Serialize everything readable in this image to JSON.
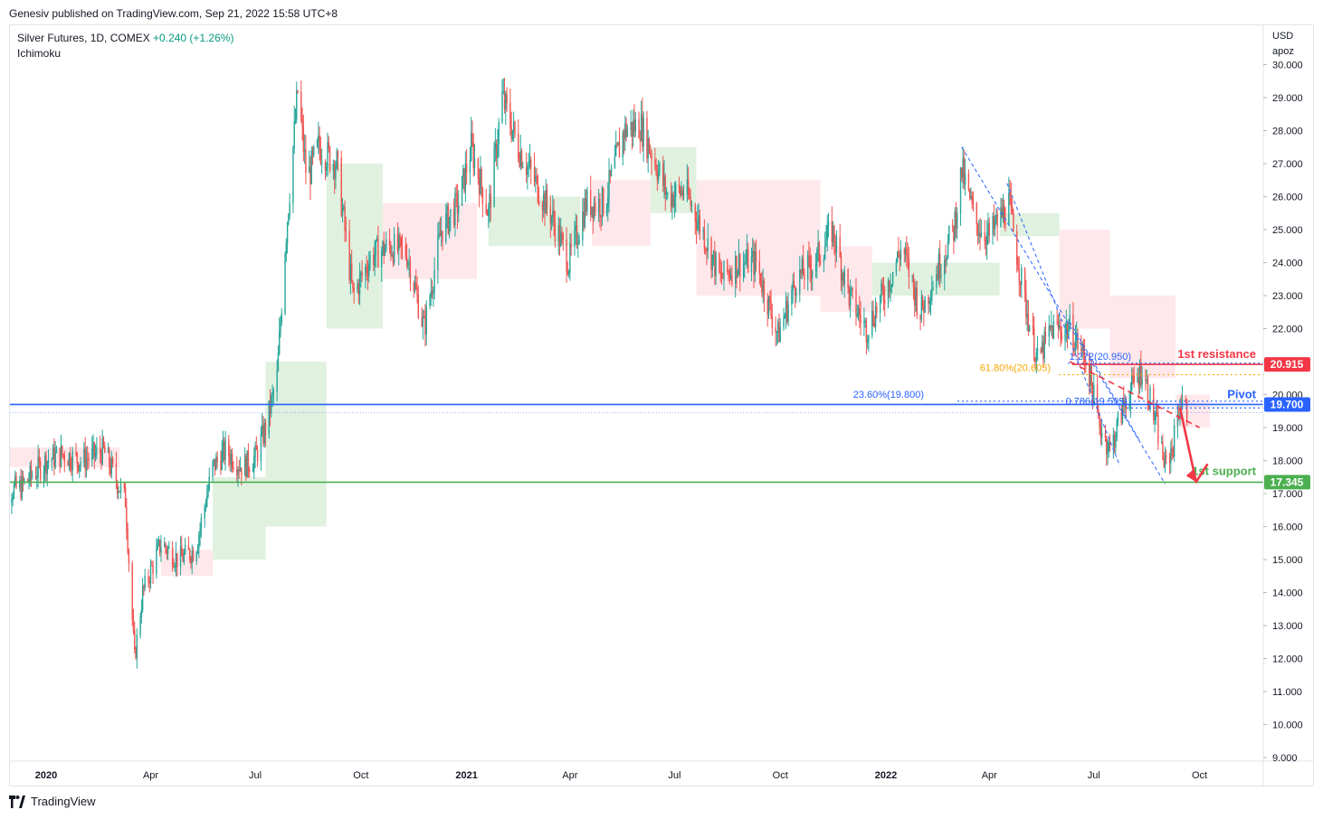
{
  "publisher": "Genesiv published on TradingView.com, Sep 21, 2022 15:58 UTC+8",
  "legend": {
    "symbol": "Silver Futures, 1D, COMEX",
    "change": "+0.240 (+1.26%)",
    "indicator": "Ichimoku"
  },
  "axis": {
    "currency": "USD",
    "sub": "apoz"
  },
  "footer": {
    "brand": "TradingView"
  },
  "colors": {
    "up": "#26a69a",
    "down": "#ef5350",
    "resistance": "#f23645",
    "pivot": "#2962ff",
    "support": "#4caf50",
    "fib": "#f7a600",
    "cloud_bull": "#a5d6a7",
    "cloud_bear": "#ffcdd2"
  },
  "chart_data": {
    "type": "candlestick",
    "y_ticks": [
      "9.000",
      "10.000",
      "11.000",
      "12.000",
      "13.000",
      "14.000",
      "15.000",
      "16.000",
      "17.000",
      "18.000",
      "19.000",
      "20.000",
      "21.000",
      "22.000",
      "23.000",
      "24.000",
      "25.000",
      "26.000",
      "27.000",
      "28.000",
      "29.000",
      "30.000"
    ],
    "ylim": [
      9,
      30.5
    ],
    "x_ticks": [
      {
        "label": "2020",
        "date": "2020-01-01",
        "bold": true
      },
      {
        "label": "Apr",
        "date": "2020-04-01"
      },
      {
        "label": "Jul",
        "date": "2020-07-01"
      },
      {
        "label": "Oct",
        "date": "2020-10-01"
      },
      {
        "label": "2021",
        "date": "2021-01-01",
        "bold": true
      },
      {
        "label": "Apr",
        "date": "2021-04-01"
      },
      {
        "label": "Jul",
        "date": "2021-07-01"
      },
      {
        "label": "Oct",
        "date": "2021-10-01"
      },
      {
        "label": "2022",
        "date": "2022-01-01",
        "bold": true
      },
      {
        "label": "Apr",
        "date": "2022-04-01"
      },
      {
        "label": "Jul",
        "date": "2022-07-01"
      },
      {
        "label": "Oct",
        "date": "2022-10-01"
      }
    ],
    "close_path": [
      [
        "2019-11-20",
        17.0
      ],
      [
        "2019-12-10",
        17.2
      ],
      [
        "2020-01-01",
        18.0
      ],
      [
        "2020-01-15",
        18.2
      ],
      [
        "2020-02-01",
        18.0
      ],
      [
        "2020-02-20",
        18.3
      ],
      [
        "2020-03-01",
        17.5
      ],
      [
        "2020-03-10",
        16.8
      ],
      [
        "2020-03-18",
        12.0
      ],
      [
        "2020-03-25",
        14.0
      ],
      [
        "2020-04-10",
        15.5
      ],
      [
        "2020-04-25",
        15.0
      ],
      [
        "2020-05-10",
        15.3
      ],
      [
        "2020-05-25",
        17.8
      ],
      [
        "2020-06-05",
        18.3
      ],
      [
        "2020-06-20",
        17.8
      ],
      [
        "2020-07-01",
        18.1
      ],
      [
        "2020-07-10",
        19.0
      ],
      [
        "2020-07-20",
        20.5
      ],
      [
        "2020-07-27",
        24.5
      ],
      [
        "2020-08-07",
        29.2
      ],
      [
        "2020-08-15",
        26.5
      ],
      [
        "2020-08-25",
        27.5
      ],
      [
        "2020-09-10",
        27.0
      ],
      [
        "2020-09-24",
        23.0
      ],
      [
        "2020-10-10",
        24.2
      ],
      [
        "2020-10-25",
        24.5
      ],
      [
        "2020-11-10",
        24.3
      ],
      [
        "2020-11-25",
        22.0
      ],
      [
        "2020-12-10",
        25.0
      ],
      [
        "2020-12-25",
        25.8
      ],
      [
        "2021-01-05",
        27.5
      ],
      [
        "2021-01-20",
        25.5
      ],
      [
        "2021-02-01",
        29.0
      ],
      [
        "2021-02-15",
        27.5
      ],
      [
        "2021-03-01",
        26.5
      ],
      [
        "2021-03-15",
        25.5
      ],
      [
        "2021-03-31",
        24.0
      ],
      [
        "2021-04-15",
        25.8
      ],
      [
        "2021-05-01",
        25.8
      ],
      [
        "2021-05-18",
        28.0
      ],
      [
        "2021-06-01",
        28.2
      ],
      [
        "2021-06-15",
        27.0
      ],
      [
        "2021-06-25",
        26.0
      ],
      [
        "2021-07-10",
        26.2
      ],
      [
        "2021-07-25",
        25.0
      ],
      [
        "2021-08-10",
        23.5
      ],
      [
        "2021-08-25",
        24.0
      ],
      [
        "2021-09-10",
        24.0
      ],
      [
        "2021-09-29",
        21.8
      ],
      [
        "2021-10-15",
        23.5
      ],
      [
        "2021-10-31",
        24.0
      ],
      [
        "2021-11-15",
        25.0
      ],
      [
        "2021-11-30",
        23.0
      ],
      [
        "2021-12-15",
        22.0
      ],
      [
        "2022-01-01",
        23.2
      ],
      [
        "2022-01-15",
        24.5
      ],
      [
        "2022-01-31",
        22.5
      ],
      [
        "2022-02-15",
        23.8
      ],
      [
        "2022-03-01",
        25.0
      ],
      [
        "2022-03-08",
        26.8
      ],
      [
        "2022-03-20",
        25.2
      ],
      [
        "2022-04-01",
        24.8
      ],
      [
        "2022-04-18",
        25.8
      ],
      [
        "2022-05-01",
        23.0
      ],
      [
        "2022-05-13",
        21.0
      ],
      [
        "2022-05-25",
        22.0
      ],
      [
        "2022-06-10",
        22.0
      ],
      [
        "2022-06-25",
        21.0
      ],
      [
        "2022-07-05",
        19.2
      ],
      [
        "2022-07-15",
        18.3
      ],
      [
        "2022-07-28",
        19.8
      ],
      [
        "2022-08-12",
        20.8
      ],
      [
        "2022-08-25",
        19.0
      ],
      [
        "2022-09-01",
        17.8
      ],
      [
        "2022-09-08",
        18.5
      ],
      [
        "2022-09-14",
        19.8
      ],
      [
        "2022-09-21",
        19.4
      ]
    ],
    "cloud": [
      {
        "from": "2019-11-10",
        "to": "2020-03-05",
        "lo": 17.8,
        "hi": 18.4,
        "bull": false
      },
      {
        "from": "2020-04-10",
        "to": "2020-05-25",
        "lo": 14.5,
        "hi": 15.3,
        "bull": false
      },
      {
        "from": "2020-05-25",
        "to": "2020-07-10",
        "lo": 15.0,
        "hi": 17.5,
        "bull": true
      },
      {
        "from": "2020-07-10",
        "to": "2020-09-01",
        "lo": 16.0,
        "hi": 21.0,
        "bull": true
      },
      {
        "from": "2020-09-01",
        "to": "2020-10-20",
        "lo": 22.0,
        "hi": 27.0,
        "bull": true
      },
      {
        "from": "2020-10-20",
        "to": "2021-01-10",
        "lo": 23.5,
        "hi": 25.8,
        "bull": false
      },
      {
        "from": "2021-01-20",
        "to": "2021-04-10",
        "lo": 24.5,
        "hi": 26.0,
        "bull": true
      },
      {
        "from": "2021-04-20",
        "to": "2021-06-10",
        "lo": 24.5,
        "hi": 26.5,
        "bull": false
      },
      {
        "from": "2021-06-10",
        "to": "2021-07-20",
        "lo": 25.5,
        "hi": 27.5,
        "bull": true
      },
      {
        "from": "2021-07-20",
        "to": "2021-11-05",
        "lo": 23.0,
        "hi": 26.5,
        "bull": false
      },
      {
        "from": "2021-11-05",
        "to": "2021-12-20",
        "lo": 22.5,
        "hi": 24.5,
        "bull": false
      },
      {
        "from": "2021-12-20",
        "to": "2022-04-10",
        "lo": 23.0,
        "hi": 24.0,
        "bull": true
      },
      {
        "from": "2022-04-10",
        "to": "2022-06-01",
        "lo": 24.8,
        "hi": 25.5,
        "bull": true
      },
      {
        "from": "2022-06-01",
        "to": "2022-07-15",
        "lo": 22.0,
        "hi": 25.0,
        "bull": false
      },
      {
        "from": "2022-07-15",
        "to": "2022-09-10",
        "lo": 20.5,
        "hi": 23.0,
        "bull": false
      },
      {
        "from": "2022-09-10",
        "to": "2022-10-10",
        "lo": 19.0,
        "hi": 20.0,
        "bull": false
      }
    ],
    "levels": [
      {
        "name": "1st resistance",
        "value": 20.915,
        "label": "20.915",
        "color": "#f23645"
      },
      {
        "name": "Pivot",
        "value": 19.7,
        "label": "19.700",
        "color": "#2962ff"
      },
      {
        "name": "1st support",
        "value": 17.345,
        "label": "17.345",
        "color": "#4caf50"
      }
    ],
    "fib_labels": [
      {
        "text": "23.60%(19.800)",
        "value": 19.8,
        "color": "#2962ff"
      },
      {
        "text": "61.80%(20.605)",
        "value": 20.605,
        "color": "#f7a600"
      },
      {
        "text": "1.272(20.950)",
        "value": 20.95,
        "color": "#2962ff"
      },
      {
        "text": "0.786(19.595)",
        "value": 19.595,
        "color": "#2962ff"
      }
    ],
    "dotted_line_value": 19.45,
    "channel": {
      "from_date": "2022-03-08",
      "from_value": 27.5,
      "to_date": "2022-09-01",
      "to_value": 17.3
    },
    "trend_resistance": {
      "from_date": "2022-06-10",
      "from_value": 21.0,
      "to_date": "2022-10-01",
      "to_value": 19.0
    },
    "projection": [
      [
        "2022-09-14",
        19.6
      ],
      [
        "2022-09-28",
        17.35
      ],
      [
        "2022-10-08",
        17.9
      ]
    ]
  }
}
